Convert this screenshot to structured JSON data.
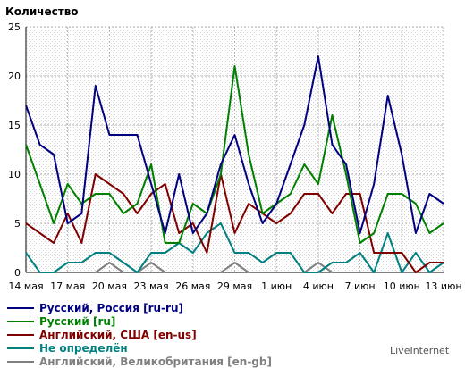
{
  "chart_data": {
    "type": "line",
    "ylabel": "Количество",
    "ylim": [
      0,
      25
    ],
    "yticks": [
      0,
      5,
      10,
      15,
      20,
      25
    ],
    "grid": true,
    "legend_position": "bottom",
    "x": [
      "14 мая",
      "15 мая",
      "16 мая",
      "17 мая",
      "18 мая",
      "19 мая",
      "20 мая",
      "21 мая",
      "22 мая",
      "23 мая",
      "24 мая",
      "25 мая",
      "26 мая",
      "27 мая",
      "28 мая",
      "29 мая",
      "30 мая",
      "31 мая",
      "1 июн",
      "2 июн",
      "3 июн",
      "4 июн",
      "5 июн",
      "6 июн",
      "7 июн",
      "8 июн",
      "9 июн",
      "10 июн",
      "11 июн",
      "12 июн",
      "13 июн"
    ],
    "xtick_labels": [
      "14 мая",
      "17 мая",
      "20 мая",
      "23 мая",
      "26 мая",
      "29 мая",
      "1 июн",
      "4 июн",
      "7 июн",
      "10 июн",
      "13 июн"
    ],
    "series": [
      {
        "name": "Русский, Россия [ru-ru]",
        "color": "#000080",
        "values": [
          17,
          13,
          12,
          5,
          6,
          19,
          14,
          14,
          14,
          9,
          4,
          10,
          4,
          6,
          11,
          14,
          9,
          5,
          7,
          11,
          15,
          22,
          13,
          11,
          4,
          9,
          18,
          12,
          4,
          8,
          7
        ]
      },
      {
        "name": "Русский [ru]",
        "color": "#008000",
        "values": [
          13,
          9,
          5,
          9,
          7,
          8,
          8,
          6,
          7,
          11,
          3,
          3,
          7,
          6,
          10,
          21,
          12,
          6,
          7,
          8,
          11,
          9,
          16,
          10,
          3,
          4,
          8,
          8,
          7,
          4,
          5
        ]
      },
      {
        "name": "Английский, США [en-us]",
        "color": "#800000",
        "values": [
          5,
          4,
          3,
          6,
          3,
          10,
          9,
          8,
          6,
          8,
          9,
          4,
          5,
          2,
          10,
          4,
          7,
          6,
          5,
          6,
          8,
          8,
          6,
          8,
          8,
          2,
          2,
          2,
          0,
          1,
          1
        ]
      },
      {
        "name": "Не определён",
        "color": "#008080",
        "values": [
          2,
          0,
          0,
          1,
          1,
          2,
          2,
          1,
          0,
          2,
          2,
          3,
          2,
          4,
          5,
          2,
          2,
          1,
          2,
          2,
          0,
          0,
          1,
          1,
          2,
          0,
          4,
          0,
          2,
          0,
          1
        ]
      },
      {
        "name": "Английский, Великобритания [en-gb]",
        "color": "#808080",
        "values": [
          0,
          0,
          0,
          0,
          0,
          0,
          1,
          0,
          0,
          1,
          0,
          0,
          0,
          0,
          0,
          1,
          0,
          0,
          0,
          0,
          0,
          1,
          0,
          0,
          0,
          0,
          0,
          0,
          0,
          0,
          0
        ]
      }
    ]
  },
  "credit": "LiveInternet"
}
